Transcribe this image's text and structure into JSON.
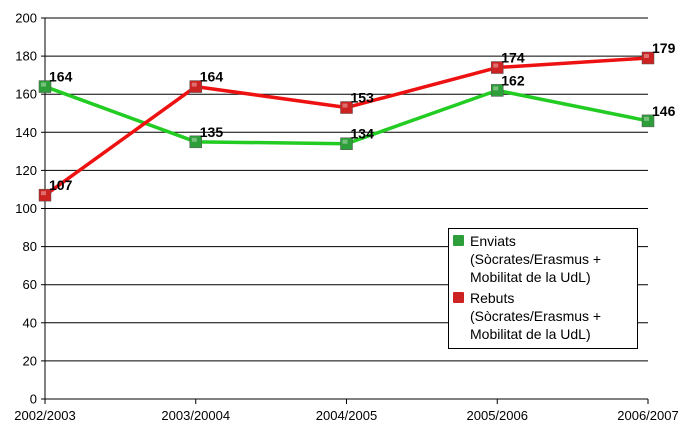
{
  "chart_data": {
    "type": "line",
    "categories": [
      "2002/2003",
      "2003/20004",
      "2004/2005",
      "2005/2006",
      "2006/2007"
    ],
    "ylim": [
      0,
      200
    ],
    "yticks": [
      0,
      20,
      40,
      60,
      80,
      100,
      120,
      140,
      160,
      180,
      200
    ],
    "grid": true,
    "legend_position": "bottom-right",
    "series": [
      {
        "name": "Enviats\n(Sòcrates/Erasmus +\nMobilitat de la UdL)",
        "values": [
          164,
          135,
          134,
          162,
          146
        ],
        "color": "#22cc22",
        "marker_color": "#2e9e3a"
      },
      {
        "name": "Rebuts\n(Sòcrates/Erasmus +\nMobilitat de la UdL)",
        "values": [
          107,
          164,
          153,
          174,
          179
        ],
        "color": "#ee1111",
        "marker_color": "#cc2222"
      }
    ]
  }
}
